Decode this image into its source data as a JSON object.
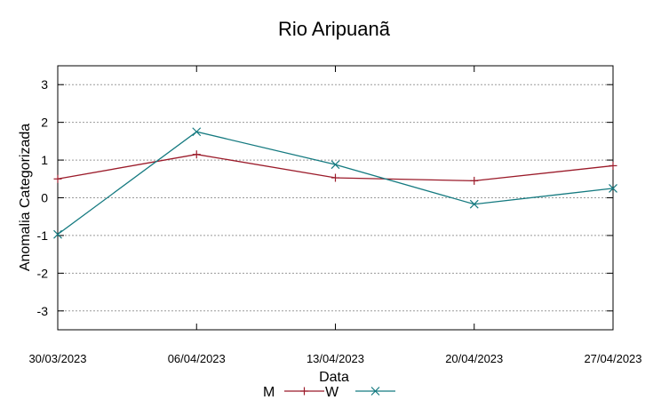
{
  "chart_data": {
    "type": "line",
    "title": "Rio Aripuanã",
    "xlabel": "Data",
    "ylabel": "Anomalia Categorizada",
    "categories": [
      "30/03/2023",
      "06/04/2023",
      "13/04/2023",
      "20/04/2023",
      "27/04/2023"
    ],
    "ylim": [
      -3.5,
      3.5
    ],
    "yticks": [
      "3",
      "2",
      "1",
      "0",
      "-1",
      "-2",
      "-3"
    ],
    "ytick_values": [
      3,
      2,
      1,
      0,
      -1,
      -2,
      -3
    ],
    "grid": true,
    "legend_position": "bottom",
    "series": [
      {
        "name": "M",
        "color": "#9b1b2a",
        "marker": "plus",
        "values": [
          0.5,
          1.15,
          0.53,
          0.45,
          0.85
        ]
      },
      {
        "name": "W",
        "color": "#157a80",
        "marker": "cross",
        "values": [
          -0.97,
          1.75,
          0.88,
          -0.17,
          0.25
        ]
      }
    ]
  }
}
